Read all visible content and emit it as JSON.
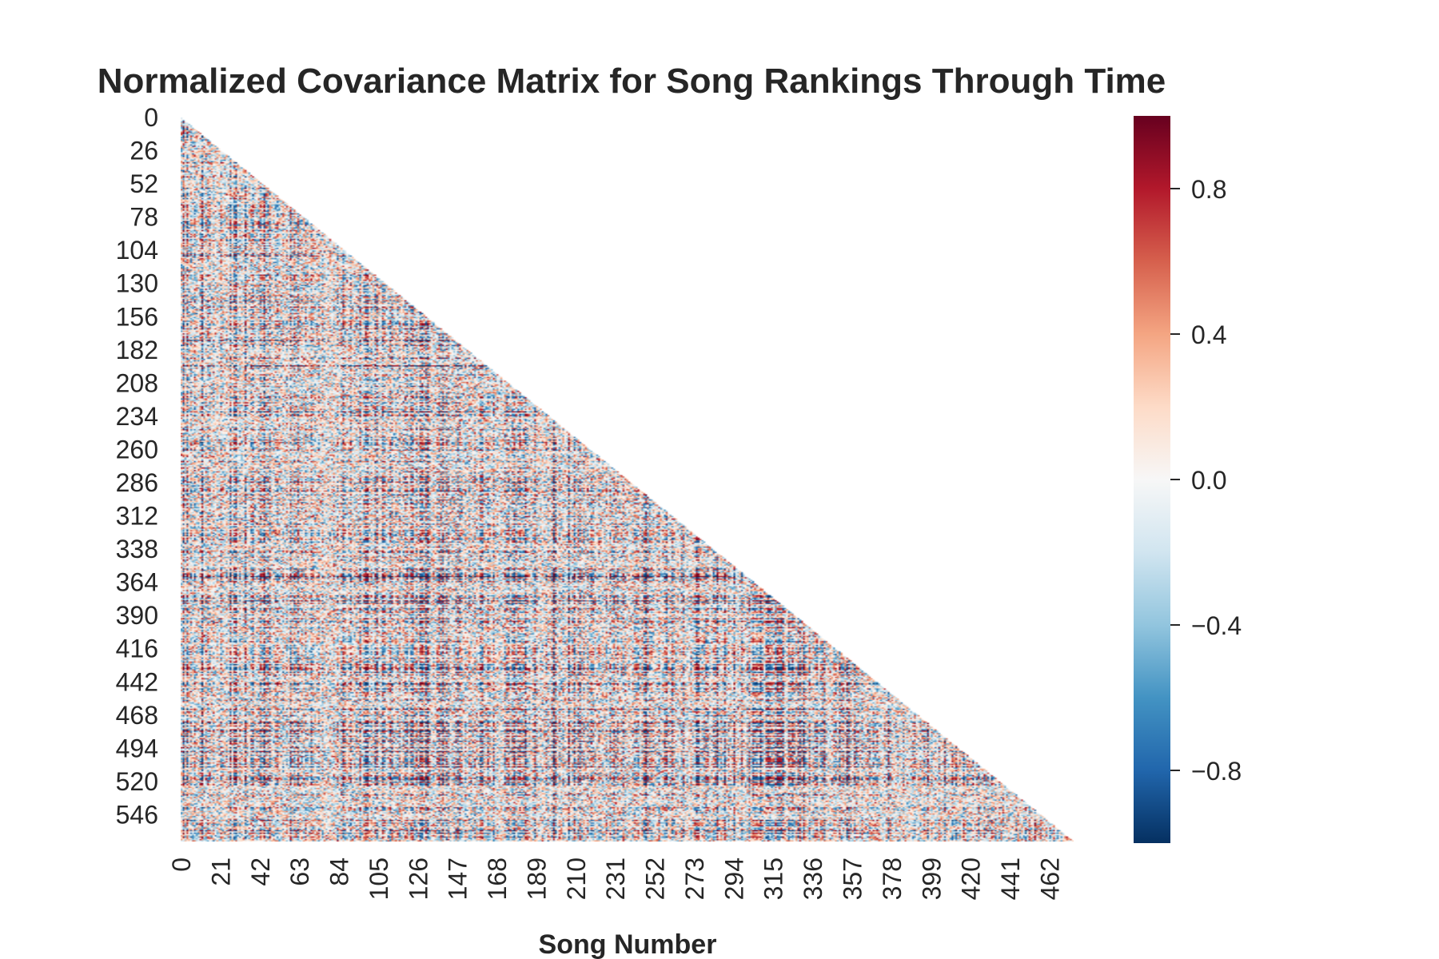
{
  "chart_data": {
    "type": "heatmap",
    "title": "Normalized Covariance Matrix for Song Rankings Through Time",
    "xlabel": "Song Number",
    "ylabel": "",
    "mask": "upper-triangle",
    "rows": 567,
    "cols": 475,
    "x_tick_labels": [
      "0",
      "21",
      "42",
      "63",
      "84",
      "105",
      "126",
      "147",
      "168",
      "189",
      "210",
      "231",
      "252",
      "273",
      "294",
      "315",
      "336",
      "357",
      "378",
      "399",
      "420",
      "441",
      "462"
    ],
    "y_tick_labels": [
      "0",
      "26",
      "52",
      "78",
      "104",
      "130",
      "156",
      "182",
      "208",
      "234",
      "260",
      "286",
      "312",
      "338",
      "364",
      "390",
      "416",
      "442",
      "468",
      "494",
      "520",
      "546"
    ],
    "colorbar": {
      "cmap": "RdBu_r",
      "vmin": -1.0,
      "vmax": 1.0,
      "tick_values": [
        0.8,
        0.4,
        0.0,
        -0.4,
        -0.8
      ],
      "tick_labels": [
        "0.8",
        "0.4",
        "0.0",
        "−0.4",
        "−0.8"
      ],
      "colors": [
        "#053061",
        "#2166ac",
        "#4393c3",
        "#92c5de",
        "#d1e5f0",
        "#f7f7f7",
        "#fddbc7",
        "#f4a582",
        "#d6604d",
        "#b2182b",
        "#67001f"
      ]
    },
    "grid": false,
    "legend": "colorbar-right"
  }
}
